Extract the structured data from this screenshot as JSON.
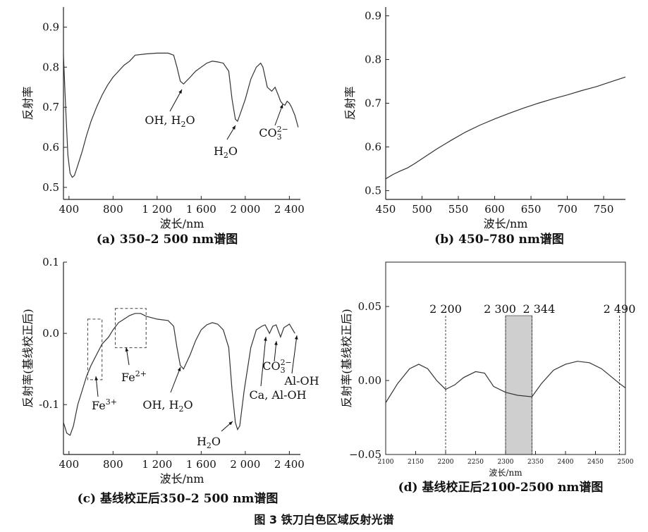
{
  "figure_caption": "图 3   铁刀白色区域反射光谱",
  "chart_data": [
    {
      "id": "a",
      "type": "line",
      "caption": "(a) 350–2 500 nm谱图",
      "xlabel": "波长/nm",
      "ylabel": "反射率",
      "xlim": [
        350,
        2500
      ],
      "ylim": [
        0.47,
        0.95
      ],
      "xticks": [
        400,
        800,
        1200,
        1600,
        2000,
        2400
      ],
      "xtick_labels": [
        "400",
        "800",
        "1 200",
        "1 600",
        "2 000",
        "2 400"
      ],
      "yticks": [
        0.5,
        0.6,
        0.7,
        0.8,
        0.9
      ],
      "ytick_labels": [
        "0.5",
        "0.6",
        "0.7",
        "0.8",
        "0.9"
      ],
      "x": [
        350,
        370,
        390,
        410,
        430,
        450,
        480,
        520,
        560,
        600,
        650,
        700,
        750,
        800,
        850,
        900,
        950,
        1000,
        1100,
        1200,
        1300,
        1350,
        1380,
        1410,
        1440,
        1500,
        1550,
        1600,
        1650,
        1700,
        1750,
        1800,
        1850,
        1880,
        1910,
        1930,
        1950,
        2000,
        2050,
        2100,
        2140,
        2160,
        2200,
        2240,
        2270,
        2300,
        2320,
        2340,
        2360,
        2380,
        2400,
        2420,
        2450,
        2480
      ],
      "y": [
        0.83,
        0.7,
        0.58,
        0.535,
        0.525,
        0.53,
        0.555,
        0.59,
        0.63,
        0.665,
        0.7,
        0.73,
        0.755,
        0.775,
        0.79,
        0.805,
        0.815,
        0.83,
        0.833,
        0.835,
        0.835,
        0.83,
        0.8,
        0.765,
        0.758,
        0.775,
        0.79,
        0.8,
        0.81,
        0.815,
        0.813,
        0.81,
        0.79,
        0.72,
        0.67,
        0.665,
        0.68,
        0.72,
        0.77,
        0.8,
        0.81,
        0.8,
        0.75,
        0.74,
        0.75,
        0.73,
        0.715,
        0.708,
        0.705,
        0.715,
        0.71,
        0.7,
        0.68,
        0.65
      ],
      "annotations": [
        {
          "label": "OH, H",
          "sub": "2",
          "rest": "O",
          "x": 1430,
          "y": 0.762
        },
        {
          "label": "H",
          "sub": "2",
          "rest": "O",
          "x": 1930,
          "y": 0.665
        },
        {
          "label": "CO",
          "sub": "3",
          "sup": "2−",
          "rest": "",
          "x": 2370,
          "y": 0.705
        }
      ]
    },
    {
      "id": "b",
      "type": "line",
      "caption": "(b) 450–780 nm谱图",
      "xlabel": "波长/nm",
      "ylabel": "反射率",
      "xlim": [
        450,
        780
      ],
      "ylim": [
        0.48,
        0.92
      ],
      "xticks": [
        450,
        500,
        550,
        600,
        650,
        700,
        750
      ],
      "xtick_labels": [
        "450",
        "500",
        "550",
        "600",
        "650",
        "700",
        "750"
      ],
      "yticks": [
        0.5,
        0.6,
        0.7,
        0.8,
        0.9
      ],
      "ytick_labels": [
        "0.5",
        "0.6",
        "0.7",
        "0.8",
        "0.9"
      ],
      "x": [
        450,
        460,
        470,
        480,
        490,
        500,
        520,
        540,
        560,
        580,
        600,
        620,
        640,
        660,
        680,
        700,
        720,
        740,
        760,
        780
      ],
      "y": [
        0.527,
        0.537,
        0.545,
        0.552,
        0.562,
        0.573,
        0.595,
        0.615,
        0.634,
        0.65,
        0.664,
        0.677,
        0.689,
        0.7,
        0.71,
        0.719,
        0.729,
        0.738,
        0.749,
        0.76
      ]
    },
    {
      "id": "c",
      "type": "line",
      "caption": "(c) 基线校正后350–2 500 nm谱图",
      "xlabel": "波长/nm",
      "ylabel": "反射率(基线校正后)",
      "xlim": [
        350,
        2500
      ],
      "ylim": [
        -0.17,
        0.1
      ],
      "xticks": [
        400,
        800,
        1200,
        1600,
        2000,
        2400
      ],
      "xtick_labels": [
        "400",
        "800",
        "1 200",
        "1 600",
        "2 000",
        "2 400"
      ],
      "yticks": [
        -0.1,
        0.0,
        0.1
      ],
      "ytick_labels": [
        "-0.1",
        "0.0",
        "0.1"
      ],
      "x": [
        350,
        380,
        410,
        440,
        480,
        520,
        560,
        600,
        650,
        700,
        760,
        800,
        850,
        900,
        950,
        1000,
        1050,
        1100,
        1200,
        1300,
        1350,
        1380,
        1410,
        1440,
        1500,
        1550,
        1600,
        1650,
        1700,
        1750,
        1800,
        1850,
        1880,
        1910,
        1930,
        1950,
        1990,
        2050,
        2100,
        2150,
        2180,
        2220,
        2250,
        2280,
        2320,
        2350,
        2400,
        2450
      ],
      "y": [
        -0.125,
        -0.14,
        -0.143,
        -0.13,
        -0.1,
        -0.08,
        -0.06,
        -0.045,
        -0.03,
        -0.015,
        -0.005,
        0.005,
        0.015,
        0.02,
        0.025,
        0.028,
        0.028,
        0.024,
        0.02,
        0.018,
        0.01,
        -0.02,
        -0.045,
        -0.05,
        -0.03,
        -0.01,
        0.005,
        0.012,
        0.015,
        0.013,
        0.005,
        -0.02,
        -0.08,
        -0.125,
        -0.135,
        -0.13,
        -0.08,
        -0.02,
        0.005,
        0.01,
        0.012,
        0.0,
        0.01,
        0.012,
        -0.005,
        0.008,
        0.013,
        0.0
      ],
      "boxes": [
        {
          "x0": 570,
          "x1": 700,
          "y0": -0.065,
          "y1": 0.02
        },
        {
          "x0": 820,
          "x1": 1100,
          "y0": -0.02,
          "y1": 0.035
        }
      ],
      "annotations": [
        {
          "label": "Fe",
          "sup": "3+",
          "x": 640
        },
        {
          "label": "Fe",
          "sup": "2+",
          "x": 960
        },
        {
          "label": "OH, H",
          "sub": "2",
          "rest": "O",
          "x": 1430
        },
        {
          "label": "H",
          "sub": "2",
          "rest": "O",
          "x": 1930
        },
        {
          "label": "Ca, Al-OH",
          "x": 2180
        },
        {
          "label": "CO",
          "sub": "3",
          "sup": "2−",
          "x": 2300
        },
        {
          "label": "Al-OH",
          "x": 2400
        }
      ]
    },
    {
      "id": "d",
      "type": "line",
      "caption": "(d) 基线校正后2100-2500 nm谱图",
      "xlabel": "波长/nm",
      "ylabel": "反射率(基线校正后)",
      "xlim": [
        2100,
        2500
      ],
      "ylim": [
        -0.05,
        0.08
      ],
      "xticks": [
        2100,
        2150,
        2200,
        2250,
        2300,
        2350,
        2400,
        2450,
        2500
      ],
      "xtick_labels": [
        "2100",
        "2150",
        "2200",
        "2250",
        "2300",
        "2350",
        "2400",
        "2450",
        "2500"
      ],
      "yticks": [
        -0.05,
        0.0,
        0.05
      ],
      "ytick_labels": [
        "−0.05",
        "0.00",
        "0.05"
      ],
      "x": [
        2100,
        2120,
        2140,
        2155,
        2170,
        2185,
        2200,
        2215,
        2230,
        2250,
        2265,
        2280,
        2300,
        2320,
        2344,
        2360,
        2380,
        2400,
        2420,
        2440,
        2460,
        2475,
        2490,
        2500
      ],
      "y": [
        -0.015,
        -0.002,
        0.008,
        0.011,
        0.008,
        0.0,
        -0.006,
        -0.003,
        0.002,
        0.006,
        0.005,
        -0.004,
        -0.008,
        -0.01,
        -0.011,
        -0.002,
        0.007,
        0.011,
        0.013,
        0.012,
        0.008,
        0.003,
        -0.002,
        -0.005
      ],
      "vlines": [
        2200,
        2300,
        2344,
        2490
      ],
      "vline_labels": [
        "2 200",
        "2 300",
        "2 344",
        "2 490"
      ],
      "shade": [
        2300,
        2344
      ]
    }
  ]
}
